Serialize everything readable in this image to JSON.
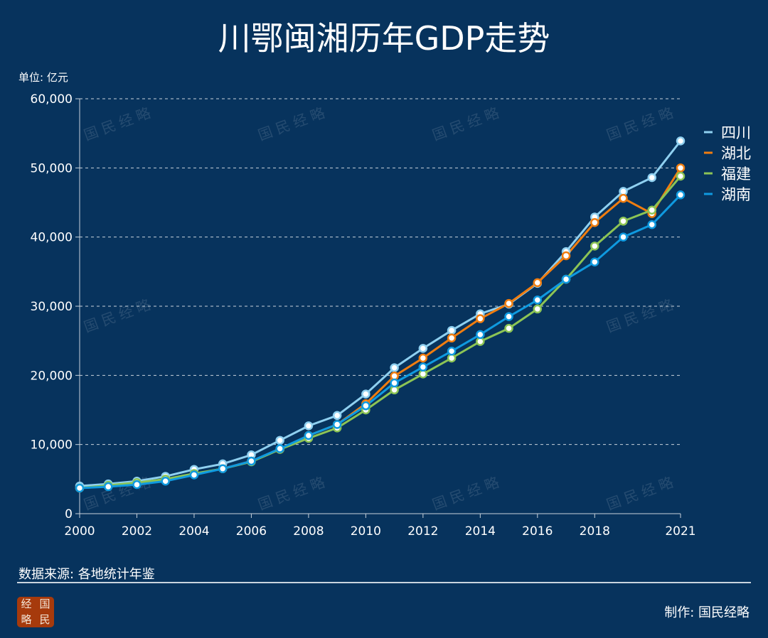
{
  "title": "川鄂闽湘历年GDP走势",
  "unit_label": "单位: 亿元",
  "source": "数据来源: 各地统计年鉴",
  "credit": "制作: 国民经略",
  "watermark": "国民经略",
  "logo_chars": [
    "经",
    "国",
    "略",
    "民"
  ],
  "chart_data": {
    "type": "line",
    "title": "川鄂闽湘历年GDP走势",
    "ylabel": "单位: 亿元",
    "x": [
      2000,
      2001,
      2002,
      2003,
      2004,
      2005,
      2006,
      2007,
      2008,
      2009,
      2010,
      2011,
      2012,
      2013,
      2014,
      2015,
      2016,
      2017,
      2018,
      2019,
      2020,
      2021
    ],
    "xlim": [
      2000,
      2021
    ],
    "x_ticks": [
      "2000",
      "2002",
      "2004",
      "2006",
      "2008",
      "2010",
      "2012",
      "2014",
      "2016",
      "2018",
      "2021"
    ],
    "ylim": [
      0,
      60000
    ],
    "y_ticks": [
      "0",
      "10,000",
      "20,000",
      "30,000",
      "40,000",
      "50,000",
      "60,000"
    ],
    "grid": "horizontal dashed",
    "legend_position": "right",
    "series": [
      {
        "name": "四川",
        "color": "#8fd0f0",
        "values": [
          4000,
          4300,
          4700,
          5400,
          6400,
          7200,
          8500,
          10600,
          12700,
          14200,
          17300,
          21100,
          23900,
          26500,
          28900,
          30300,
          33300,
          37900,
          42900,
          46600,
          48600,
          53900
        ]
      },
      {
        "name": "湖北",
        "color": "#f07d10",
        "values": [
          3700,
          4000,
          4300,
          4800,
          5700,
          6500,
          7600,
          9300,
          11300,
          12900,
          15900,
          19900,
          22500,
          25400,
          28200,
          30400,
          33400,
          37300,
          42100,
          45600,
          43400,
          50000
        ]
      },
      {
        "name": "福建",
        "color": "#8cc455",
        "values": [
          3700,
          4100,
          4500,
          5000,
          5800,
          6500,
          7500,
          9300,
          10900,
          12400,
          15000,
          17900,
          20200,
          22500,
          24900,
          26800,
          29600,
          33900,
          38700,
          42300,
          43900,
          48800
        ]
      },
      {
        "name": "湖南",
        "color": "#0f9ae0",
        "values": [
          3700,
          3900,
          4200,
          4700,
          5600,
          6500,
          7600,
          9400,
          11300,
          12900,
          15600,
          18900,
          21200,
          23500,
          25900,
          28500,
          30900,
          33900,
          36400,
          40000,
          41800,
          46100
        ]
      }
    ]
  }
}
